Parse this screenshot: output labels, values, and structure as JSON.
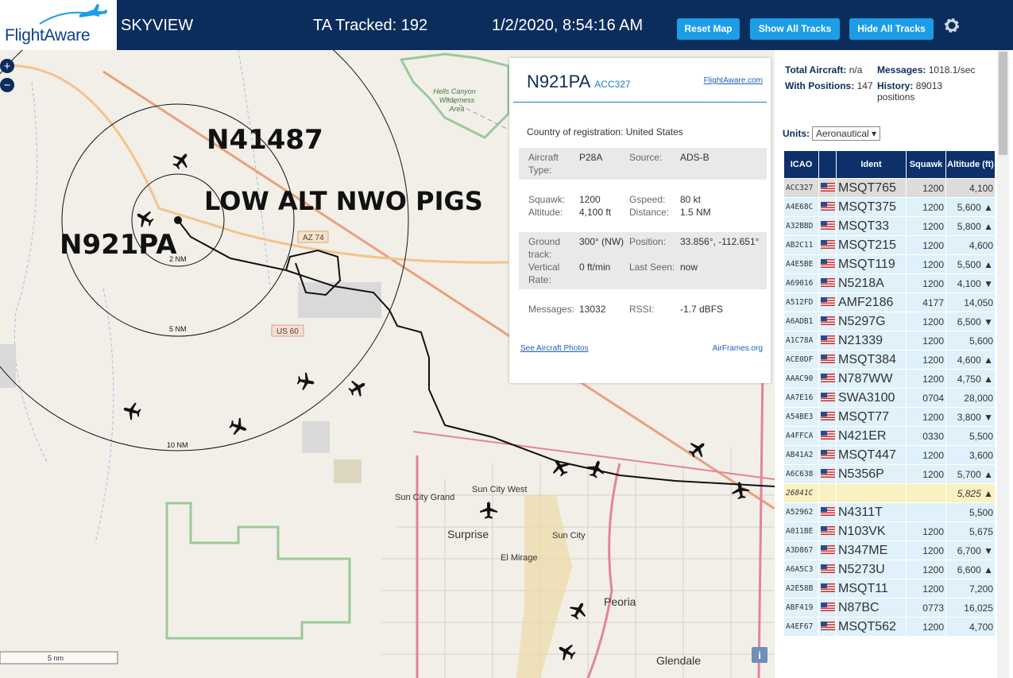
{
  "header": {
    "logo": "FlightAware",
    "app": "SKYVIEW",
    "tracked": "TA Tracked: 192",
    "datetime": "1/2/2020, 8:54:16 AM",
    "buttons": [
      "Reset Map",
      "Show All Tracks",
      "Hide All Tracks"
    ]
  },
  "map": {
    "annotations": [
      "N41487",
      "LOW ALT NWO PIGS",
      "N921PA"
    ],
    "rings": [
      "2 NM",
      "5 NM",
      "10 NM"
    ],
    "roads": [
      "AZ 74",
      "US 60"
    ],
    "places": [
      "Hells Canyon",
      "Wilderness",
      "Area",
      "Sun City West",
      "Sun City Grand",
      "Surprise",
      "Sun City",
      "El Mirage",
      "Peoria",
      "Glendale"
    ],
    "scale": "5 nm",
    "zoom": [
      "+",
      "−"
    ]
  },
  "popup": {
    "title": "N921PA",
    "icao": "ACC327",
    "link": "FlightAware.com",
    "country_label": "Country of registration:",
    "country": "United States",
    "sections": [
      [
        [
          "Aircraft Type:",
          "P28A"
        ],
        [
          "Source:",
          "ADS-B"
        ]
      ],
      [
        [
          "Squawk:",
          "1200"
        ],
        [
          "Gspeed:",
          "80 kt"
        ],
        [
          "Altitude:",
          "4,100 ft"
        ],
        [
          "Distance:",
          "1.5 NM"
        ]
      ],
      [
        [
          "Ground track:",
          "300° (NW)"
        ],
        [
          "Position:",
          "33.856°, -112.651°"
        ],
        [
          "Vertical Rate:",
          "0 ft/min"
        ],
        [
          "Last Seen:",
          "now"
        ]
      ],
      [
        [
          "Messages:",
          "13032"
        ],
        [
          "RSSI:",
          "-1.7 dBFS"
        ]
      ]
    ],
    "photos": "See Aircraft Photos",
    "airframes": "AirFrames.org"
  },
  "sidebar": {
    "stats": [
      [
        "Total Aircraft:",
        "n/a"
      ],
      [
        "Messages:",
        "1018.1/sec"
      ],
      [
        "With Positions:",
        "147"
      ],
      [
        "History:",
        "89013 positions"
      ]
    ],
    "units_label": "Units:",
    "units": "Aeronautical",
    "columns": [
      "ICAO",
      "Ident",
      "Squawk",
      "Altitude (ft)"
    ],
    "rows": [
      [
        "ACC327",
        "MSQT765",
        "1200",
        "4,100",
        null
      ],
      [
        "A4E68C",
        "MSQT375",
        "1200",
        "5,600",
        "▲"
      ],
      [
        "A32BBD",
        "MSQT33",
        "1200",
        "5,800",
        "▲"
      ],
      [
        "AB2C11",
        "MSQT215",
        "1200",
        "4,600",
        null
      ],
      [
        "A4E5BE",
        "MSQT119",
        "1200",
        "5,500",
        "▲"
      ],
      [
        "A69016",
        "N5218A",
        "1200",
        "4,100",
        "▼"
      ],
      [
        "A512FD",
        "AMF2186",
        "4177",
        "14,050",
        null
      ],
      [
        "A6ADB1",
        "N5297G",
        "1200",
        "6,500",
        "▼"
      ],
      [
        "A1C78A",
        "N21339",
        "1200",
        "5,600",
        null
      ],
      [
        "ACE0DF",
        "MSQT384",
        "1200",
        "4,600",
        "▲"
      ],
      [
        "AAAC90",
        "N787WW",
        "1200",
        "4,750",
        "▲"
      ],
      [
        "AA7E16",
        "SWA3100",
        "0704",
        "28,000",
        null
      ],
      [
        "A54BE3",
        "MSQT77",
        "1200",
        "3,800",
        "▼"
      ],
      [
        "A4FFCA",
        "N421ER",
        "0330",
        "5,500",
        null
      ],
      [
        "AB41A2",
        "MSQT447",
        "1200",
        "3,600",
        null
      ],
      [
        "A6C638",
        "N5356P",
        "1200",
        "5,700",
        "▲"
      ],
      [
        "26841C",
        null,
        null,
        "5,825",
        "▲"
      ],
      [
        "A52962",
        "N4311T",
        null,
        "5,500",
        null
      ],
      [
        "A011BE",
        "N103VK",
        "1200",
        "5,675",
        null
      ],
      [
        "A3D867",
        "N347ME",
        "1200",
        "6,700",
        "▼"
      ],
      [
        "A6A5C3",
        "N5273U",
        "1200",
        "6,600",
        "▲"
      ],
      [
        "A2E58B",
        "MSQT11",
        "1200",
        "7,200",
        null
      ],
      [
        "ABF419",
        "N87BC",
        "0773",
        "16,025",
        null
      ],
      [
        "A4EF67",
        "MSQT562",
        "1200",
        "4,700",
        null
      ]
    ]
  }
}
